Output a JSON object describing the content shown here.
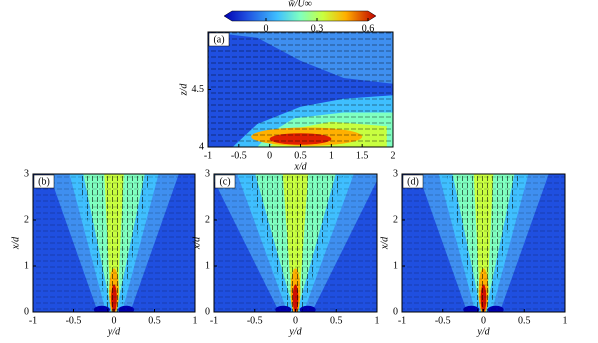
{
  "chart_data": [
    {
      "type": "colorbar",
      "label": "w̄/U∞",
      "lim": [
        -0.2,
        0.6
      ],
      "ticks": [
        0,
        0.3,
        0.6
      ]
    },
    {
      "type": "contour",
      "panel_label": "(a)",
      "xlabel": "x/d",
      "ylabel": "z/d",
      "xlim": [
        -1,
        2
      ],
      "ylim": [
        4,
        5
      ],
      "xticks": [
        -1,
        -0.5,
        0,
        0.5,
        1,
        1.5,
        2
      ],
      "yticks": [
        4,
        4.5
      ]
    },
    {
      "type": "contour",
      "panel_label": "(b)",
      "xlabel": "y/d",
      "ylabel": "x/d",
      "xlim": [
        -1,
        1
      ],
      "ylim": [
        0,
        3
      ],
      "xticks": [
        -1,
        -0.5,
        0,
        0.5,
        1
      ],
      "yticks": [
        0,
        1,
        2,
        3
      ]
    },
    {
      "type": "contour",
      "panel_label": "(c)",
      "xlabel": "y/d",
      "ylabel": "x/d",
      "xlim": [
        -1,
        1
      ],
      "ylim": [
        0,
        3
      ],
      "xticks": [
        -1,
        -0.5,
        0,
        0.5,
        1
      ],
      "yticks": [
        0,
        1,
        2,
        3
      ]
    },
    {
      "type": "contour",
      "panel_label": "(d)",
      "xlabel": "y/d",
      "ylabel": "x/d",
      "xlim": [
        -1,
        1
      ],
      "ylim": [
        0,
        3
      ],
      "xticks": [
        -1,
        -0.5,
        0,
        0.5,
        1
      ],
      "yticks": [
        0,
        1,
        2,
        3
      ]
    }
  ]
}
